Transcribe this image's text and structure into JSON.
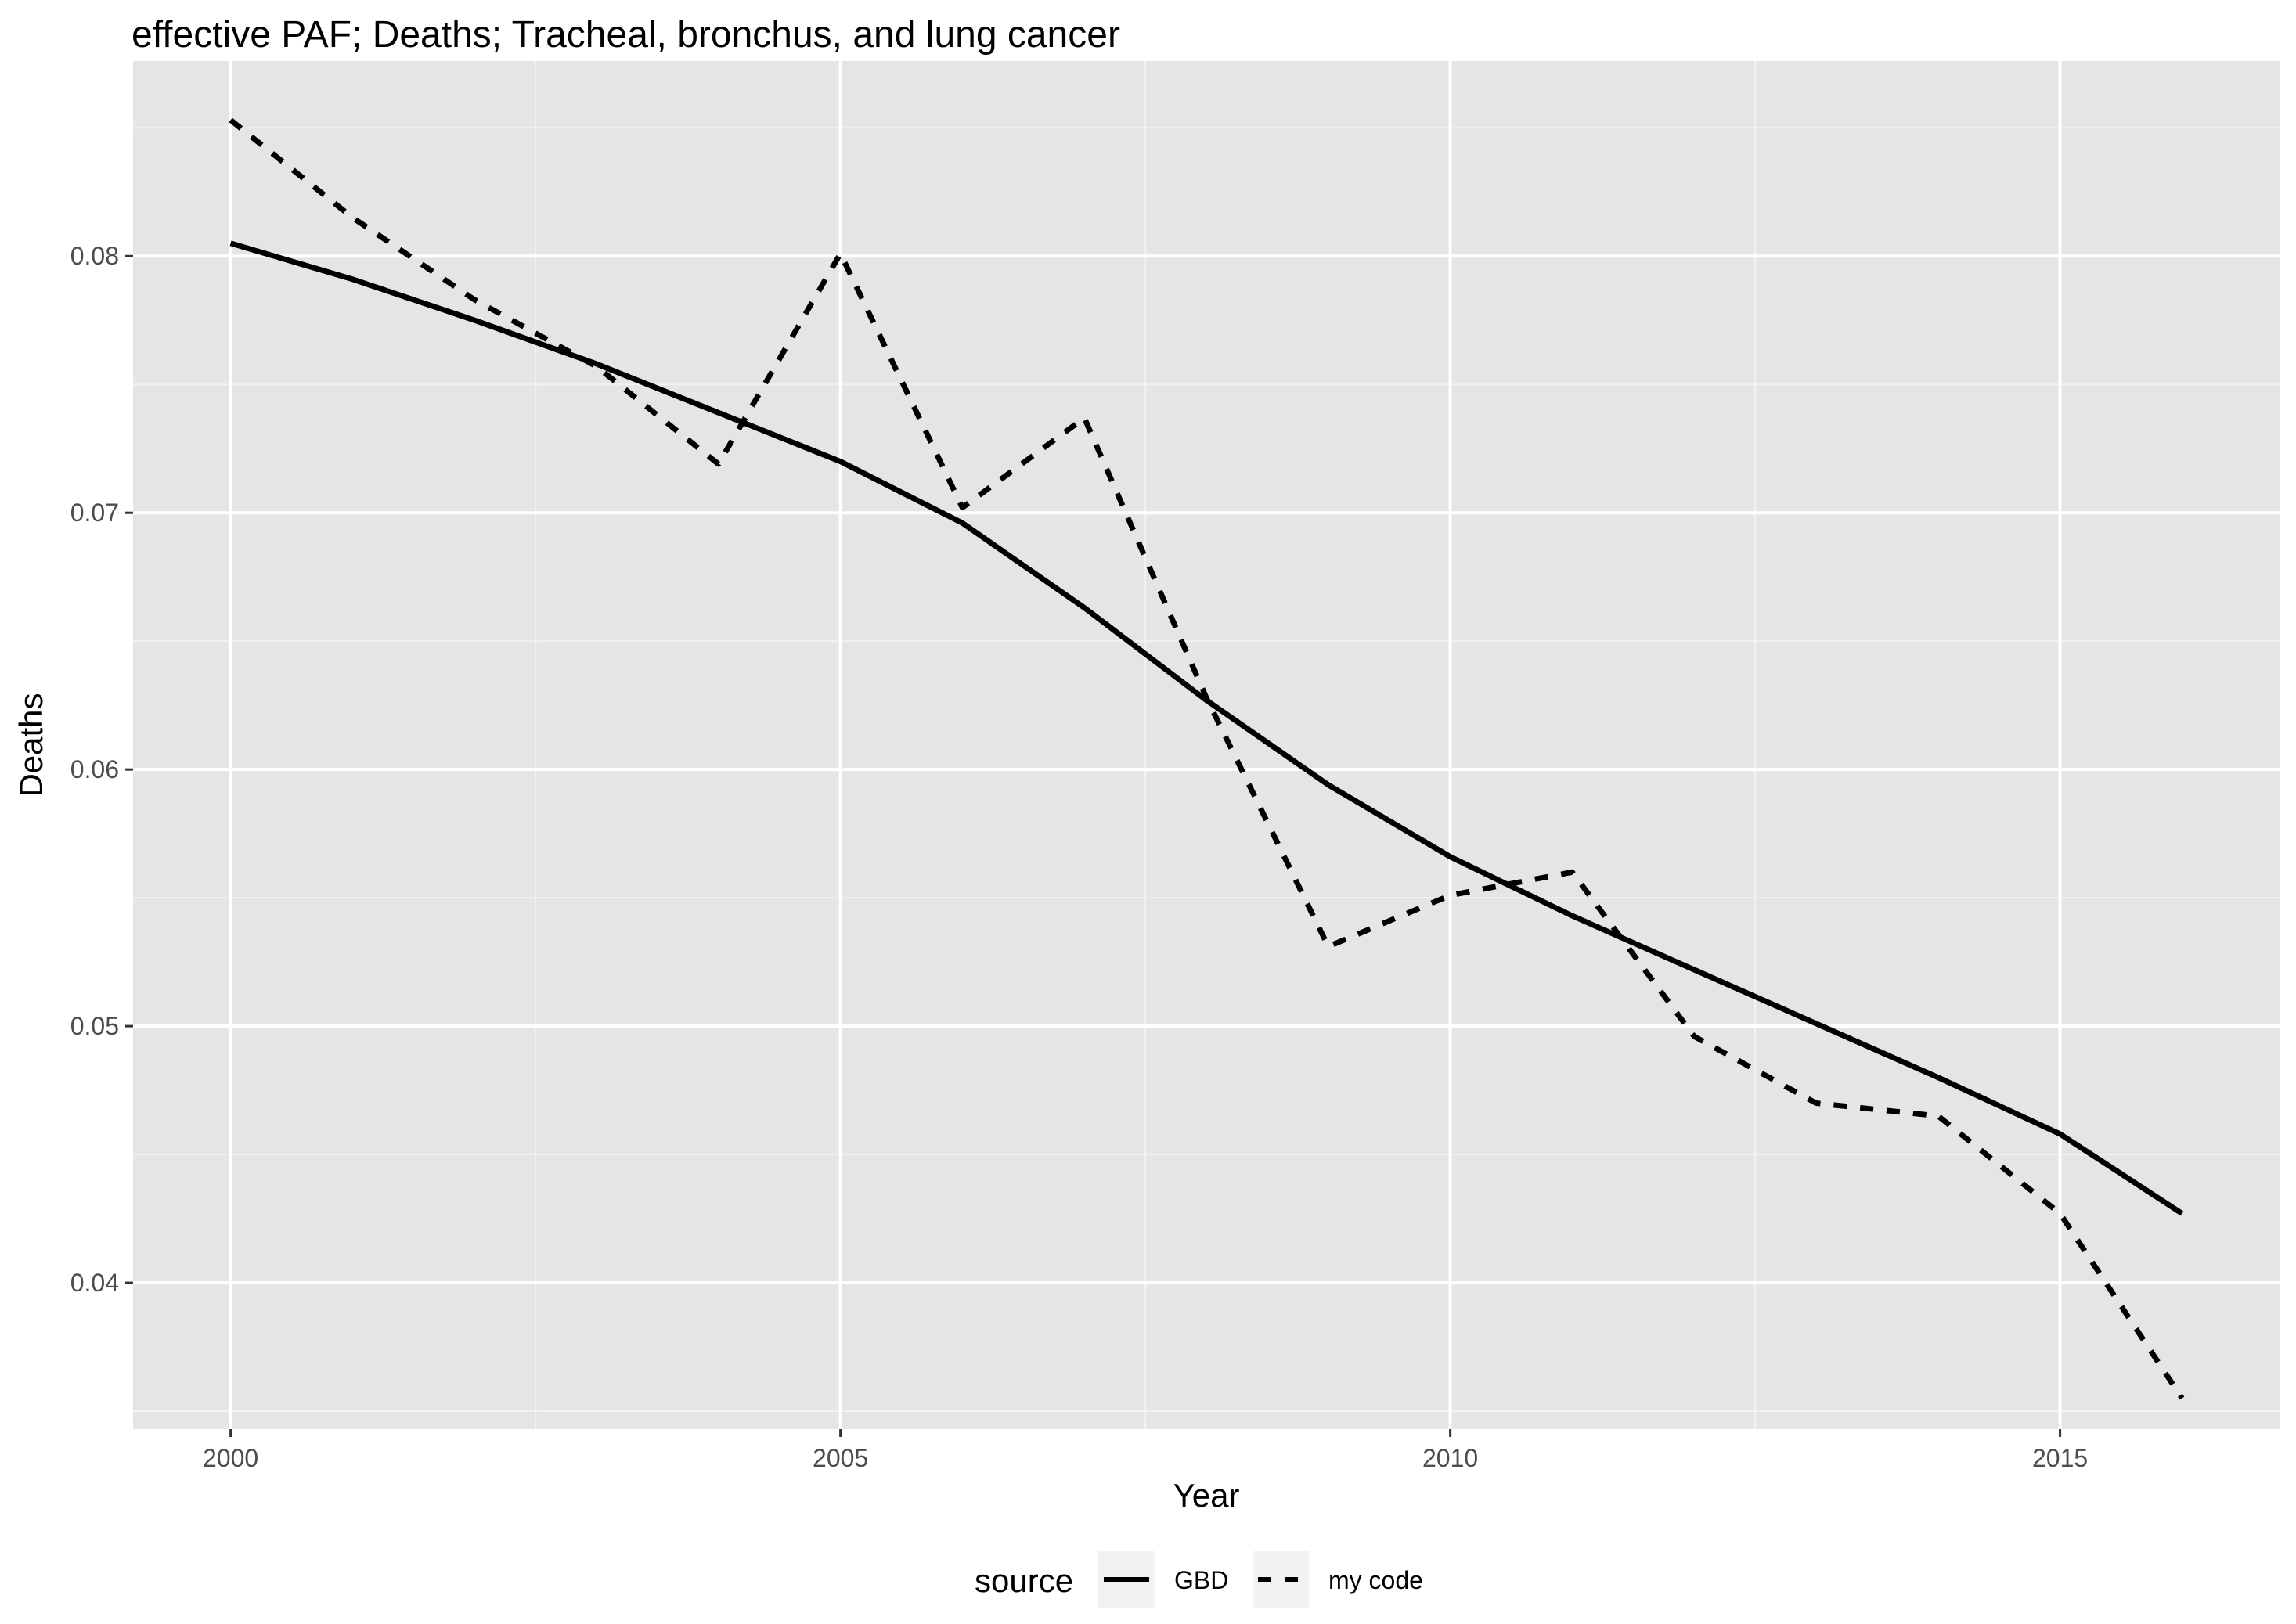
{
  "chart_data": {
    "type": "line",
    "title": "effective PAF; Deaths; Tracheal, bronchus, and lung cancer",
    "xlabel": "Year",
    "ylabel": "Deaths",
    "xlim": [
      1999.2,
      2016.8
    ],
    "ylim": [
      0.0343,
      0.0876
    ],
    "x_ticks": [
      2000,
      2005,
      2010,
      2015
    ],
    "x_tick_labels": [
      "2000",
      "2005",
      "2010",
      "2015"
    ],
    "y_ticks": [
      0.04,
      0.05,
      0.06,
      0.07,
      0.08
    ],
    "y_tick_labels": [
      "0.04",
      "0.05",
      "0.06",
      "0.07",
      "0.08"
    ],
    "grid": true,
    "legend": {
      "title": "source",
      "position": "bottom",
      "entries": [
        {
          "label": "GBD",
          "linestyle": "solid"
        },
        {
          "label": "my code",
          "linestyle": "dashed"
        }
      ]
    },
    "x": [
      2000,
      2001,
      2002,
      2003,
      2004,
      2005,
      2006,
      2007,
      2008,
      2009,
      2010,
      2011,
      2012,
      2013,
      2014,
      2015,
      2016
    ],
    "series": [
      {
        "name": "GBD",
        "linestyle": "solid",
        "values": [
          0.0805,
          0.0791,
          0.0775,
          0.0758,
          0.0739,
          0.072,
          0.0696,
          0.0663,
          0.0627,
          0.0594,
          0.0566,
          0.0543,
          0.0522,
          0.0501,
          0.048,
          0.0458,
          0.0427
        ]
      },
      {
        "name": "my code",
        "linestyle": "dashed",
        "values": [
          0.0853,
          0.0815,
          0.0783,
          0.0757,
          0.0719,
          0.0801,
          0.0702,
          0.0737,
          0.0628,
          0.0531,
          0.0551,
          0.056,
          0.0496,
          0.047,
          0.0465,
          0.0427,
          0.0355
        ]
      }
    ]
  },
  "colors": {
    "page_background": "#ffffff",
    "panel_background": "#e5e5e5",
    "grid_major": "#ffffff",
    "grid_minor": "#f2f2f2",
    "line": "#000000",
    "legend_key_background": "#f2f2f2",
    "tick_text": "#4d4d4d"
  }
}
